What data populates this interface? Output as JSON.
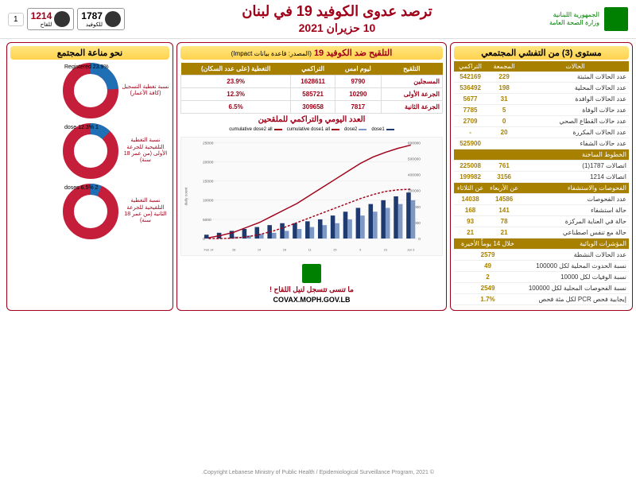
{
  "header": {
    "ministry_ar1": "الجمهورية اللبنانية",
    "ministry_ar2": "وزارة الصحة العامة",
    "title": "ترصد عدوى الكوفيد 19 في لبنان",
    "date": "10 حزيران 2021",
    "hotline1": "1787",
    "hotline1_sub": "للكوفيد",
    "hotline2": "1214",
    "hotline2_sub": "للقاح",
    "page": "1",
    "hotline1_color": "#333",
    "hotline2_color": "#a00018"
  },
  "right_panel": {
    "title": "مستوى (3) من التفشي المجتمعي",
    "cases_header": "الحالات",
    "col_daily": "المجمعة",
    "col_cum": "التراكمي",
    "rows1": [
      {
        "label": "عدد الحالات المثبتة",
        "v1": "229",
        "v2": "542169"
      },
      {
        "label": "عدد الحالات المحلية",
        "v1": "198",
        "v2": "536492"
      },
      {
        "label": "عدد الحالات الوافدة",
        "v1": "31",
        "v2": "5677"
      },
      {
        "label": "عدد حالات الوفاة",
        "v1": "5",
        "v2": "7785"
      },
      {
        "label": "عدد حالات القطاع الصحي",
        "v1": "0",
        "v2": "2709"
      },
      {
        "label": "عدد الحالات المكررة",
        "v1": "20",
        "v2": "-"
      },
      {
        "label": "عدد حالات الشفاء",
        "v1": "",
        "v2": "525900"
      }
    ],
    "hotlines_header": "الخطوط الساخنة",
    "rows2": [
      {
        "label": "اتصالات 1787(1)",
        "v1": "761",
        "v2": "225008"
      },
      {
        "label": "اتصالات 1214",
        "v1": "3156",
        "v2": "199982"
      }
    ],
    "tests_header": "الفحوصات والاستشفاء",
    "tests_col1": "عن الأربعاء",
    "tests_col2": "عن الثلاثاء",
    "rows3": [
      {
        "label": "عدد الفحوصات",
        "v1": "14586",
        "v2": "14038"
      },
      {
        "label": "حالة استشفاء",
        "v1": "141",
        "v2": "168"
      },
      {
        "label": "حالة في العناية المركزة",
        "v1": "78",
        "v2": "93"
      },
      {
        "label": "حالة مع تنفس اصطناعي",
        "v1": "21",
        "v2": "21"
      }
    ],
    "epi_header": "المؤشرات الوبائية",
    "epi_sub": "خلال 14 يوماً الأخيرة",
    "rows4": [
      {
        "label": "عدد الحالات النشطة",
        "v1": "2579"
      },
      {
        "label": "نسبة الحدوث المحلية لكل 100000",
        "v1": "49"
      },
      {
        "label": "نسبة الوفيات لكل 10000",
        "v1": "2"
      },
      {
        "label": "نسبة الفحوصات المحلية لكل 100000",
        "v1": "2549"
      },
      {
        "label": "إيجابية فحص PCR لكل مئة فحص",
        "v1": "1.7%"
      }
    ]
  },
  "middle_panel": {
    "title": "التلقيح ضد الكوفيد 19",
    "subtitle": "(المصدر: قاعدة بيانات Impact)",
    "table": {
      "headers": [
        "التلقيح",
        "ليوم امس",
        "التراكمي",
        "التغطية (على عدد السكان)"
      ],
      "rows": [
        {
          "label": "المسجلين",
          "v1": "9790",
          "v2": "1628611",
          "v3": "23.9%"
        },
        {
          "label": "الجرعة الأولى",
          "v1": "10290",
          "v2": "585721",
          "v3": "12.3%"
        },
        {
          "label": "الجرعة الثانية",
          "v1": "7817",
          "v2": "309658",
          "v3": "6.5%"
        }
      ]
    },
    "chart_title": "العدد اليومي والتراكمي للملقحين",
    "chart": {
      "type": "combo-bar-line",
      "legend": [
        "dose1",
        "dose2",
        "cumulative dose1 all",
        "cumulative dose2 all"
      ],
      "colors": [
        "#1f3a6e",
        "#7d98c4",
        "#a00018",
        "#a00018"
      ],
      "line_styles": [
        "solid",
        "solid",
        "solid",
        "dashed"
      ],
      "y_left_max": 25000,
      "y_left_step": 5000,
      "y_right_max": 600000,
      "y_right_step": 100000,
      "x_labels": [
        "14 Feb",
        "21",
        "28",
        "7 Mar",
        "14",
        "21",
        "28",
        "4 Apr",
        "11",
        "18",
        "25",
        "2 May",
        "9",
        "16",
        "23",
        "30",
        "6 Jun"
      ],
      "dose1_bars": [
        1000,
        1500,
        2000,
        2500,
        3000,
        3500,
        4000,
        4000,
        4500,
        5000,
        6000,
        7000,
        8000,
        9000,
        10000,
        11000,
        12000
      ],
      "dose2_bars": [
        0,
        0,
        500,
        800,
        1200,
        1500,
        2000,
        2500,
        3000,
        3500,
        4000,
        5000,
        6000,
        7000,
        8000,
        9000,
        10000
      ],
      "cum1": [
        5000,
        20000,
        40000,
        70000,
        100000,
        140000,
        180000,
        220000,
        270000,
        320000,
        370000,
        420000,
        470000,
        510000,
        540000,
        565000,
        585000
      ],
      "cum2": [
        0,
        0,
        3000,
        10000,
        25000,
        45000,
        70000,
        100000,
        130000,
        160000,
        190000,
        220000,
        250000,
        275000,
        295000,
        305000,
        309000
      ],
      "background": "#fafafa",
      "grid": "#e5e5e5",
      "y_left_label": "daily count"
    },
    "reminder": "ما تنسى تتسجل لنيل اللقاح !",
    "url": "COVAX.MOPH.GOV.LB"
  },
  "left_panel": {
    "title": "نحو مناعة المجتمع",
    "donuts": [
      {
        "label": "نسبة تغطية التسجيل (كافة الأعمار)",
        "pct": 23.9,
        "pct_label": "Registered 23.9%"
      },
      {
        "label": "نسبة التغطية التلقيحية للجرعة الأولى (من عمر 18 سنة)",
        "pct": 12.3,
        "pct_label": "1 dose 12.3%"
      },
      {
        "label": "نسبة التغطية التلقيحية للجرعة الثانية (من عمر 18 سنة)",
        "pct": 6.5,
        "pct_label": "2 doses 6.5%"
      }
    ],
    "donut_fill": "#c41e3a",
    "donut_covered": "#1f6fb4"
  },
  "footer": "© Copyright Lebanese Ministry of Public Health / Epidemiological Surveillance Program, 2021."
}
